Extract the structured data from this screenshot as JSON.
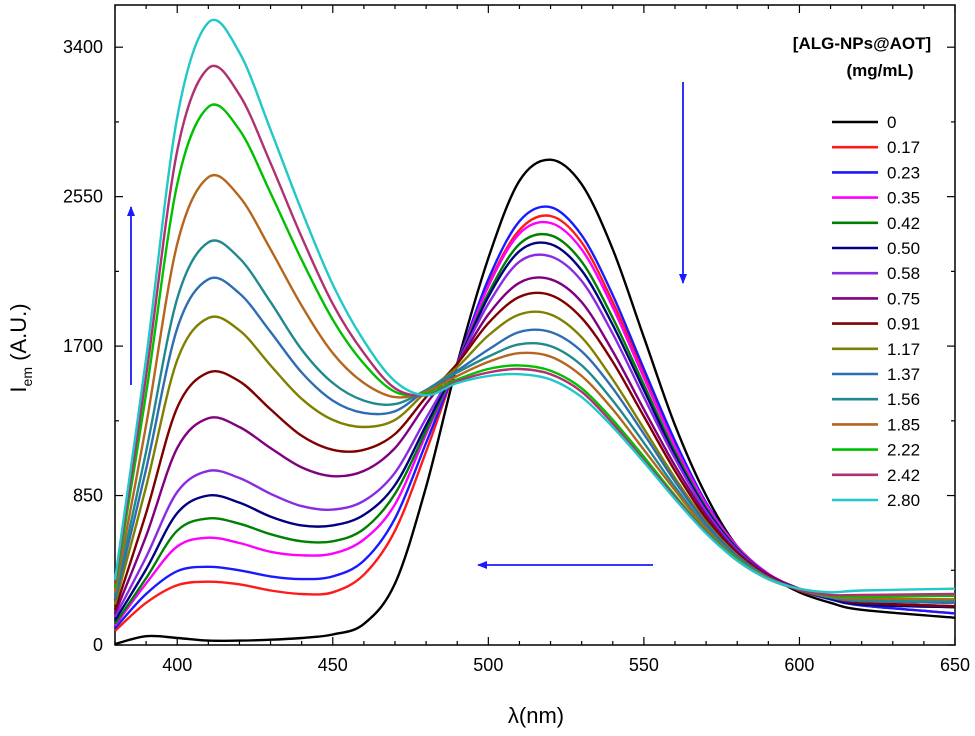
{
  "chart_data": {
    "type": "line",
    "xlabel": "λ(nm)",
    "ylabel": {
      "main": "I",
      "sub": "em",
      "unit": " (A.U.)"
    },
    "xlim": [
      380,
      650
    ],
    "ylim": [
      0,
      3640
    ],
    "xticks": [
      400,
      450,
      500,
      550,
      600,
      650
    ],
    "yticks": [
      0,
      850,
      1700,
      2550,
      3400
    ],
    "grid": false,
    "legend": {
      "title_line1": "[ALG-NPs@AOT]",
      "title_line2": "(mg/mL)",
      "placement": "right"
    },
    "annotations": [
      {
        "type": "arrow",
        "direction": "up",
        "color": "#1a1aff",
        "meaning": "increase of short-wavelength band"
      },
      {
        "type": "arrow",
        "direction": "down",
        "color": "#1a1aff",
        "meaning": "decrease of long-wavelength band"
      },
      {
        "type": "arrow",
        "direction": "left",
        "color": "#1a1aff",
        "meaning": "blue shift"
      }
    ],
    "series": [
      {
        "name": "0",
        "color": "#000000",
        "v": [
          5,
          50,
          40,
          25,
          25,
          30,
          40,
          60,
          120,
          350,
          900,
          1600,
          2200,
          2640,
          2760,
          2620,
          2250,
          1750,
          1250,
          850,
          560,
          400,
          300,
          240,
          200,
          155
        ]
      },
      {
        "name": "0.17",
        "color": "#ff1a1a",
        "v": [
          80,
          240,
          340,
          360,
          345,
          310,
          290,
          300,
          400,
          650,
          1100,
          1600,
          2050,
          2360,
          2440,
          2290,
          1950,
          1550,
          1150,
          800,
          550,
          400,
          310,
          260,
          225,
          180
        ]
      },
      {
        "name": "0.23",
        "color": "#1a1aff",
        "v": [
          95,
          290,
          420,
          445,
          425,
          390,
          375,
          390,
          480,
          720,
          1150,
          1600,
          2080,
          2410,
          2490,
          2330,
          1990,
          1570,
          1160,
          810,
          560,
          405,
          315,
          260,
          225,
          180
        ]
      },
      {
        "name": "0.35",
        "color": "#ff00ff",
        "v": [
          110,
          350,
          560,
          610,
          580,
          530,
          510,
          520,
          600,
          800,
          1200,
          1600,
          2040,
          2340,
          2400,
          2250,
          1920,
          1520,
          1130,
          800,
          560,
          405,
          320,
          270,
          235,
          220
        ]
      },
      {
        "name": "0.42",
        "color": "#008000",
        "v": [
          120,
          380,
          650,
          720,
          690,
          630,
          590,
          590,
          660,
          860,
          1220,
          1600,
          2000,
          2280,
          2330,
          2180,
          1860,
          1480,
          1100,
          780,
          550,
          400,
          315,
          265,
          230,
          215
        ]
      },
      {
        "name": "0.50",
        "color": "#000080",
        "v": [
          140,
          430,
          750,
          850,
          810,
          730,
          680,
          680,
          740,
          910,
          1250,
          1600,
          1980,
          2240,
          2280,
          2130,
          1820,
          1450,
          1080,
          770,
          545,
          400,
          315,
          265,
          230,
          215
        ]
      },
      {
        "name": "0.58",
        "color": "#8a2be2",
        "v": [
          160,
          500,
          870,
          990,
          950,
          860,
          790,
          770,
          820,
          980,
          1290,
          1600,
          1940,
          2180,
          2210,
          2070,
          1770,
          1410,
          1060,
          760,
          540,
          400,
          320,
          270,
          240,
          220
        ]
      },
      {
        "name": "0.75",
        "color": "#800080",
        "v": [
          180,
          620,
          1120,
          1290,
          1240,
          1120,
          1010,
          960,
          990,
          1120,
          1370,
          1600,
          1880,
          2060,
          2080,
          1950,
          1670,
          1340,
          1020,
          740,
          530,
          400,
          320,
          270,
          240,
          220
        ]
      },
      {
        "name": "0.91",
        "color": "#800000",
        "v": [
          200,
          750,
          1350,
          1550,
          1500,
          1340,
          1190,
          1110,
          1110,
          1200,
          1410,
          1600,
          1830,
          1980,
          1990,
          1860,
          1610,
          1300,
          990,
          720,
          520,
          390,
          315,
          270,
          240,
          220
        ]
      },
      {
        "name": "1.17",
        "color": "#808000",
        "v": [
          230,
          900,
          1620,
          1860,
          1790,
          1590,
          1400,
          1280,
          1240,
          1280,
          1440,
          1580,
          1760,
          1880,
          1880,
          1750,
          1510,
          1230,
          950,
          700,
          510,
          385,
          315,
          270,
          250,
          240
        ]
      },
      {
        "name": "1.37",
        "color": "#2e6db4",
        "v": [
          260,
          1000,
          1800,
          2080,
          2000,
          1780,
          1550,
          1390,
          1320,
          1330,
          1450,
          1560,
          1680,
          1780,
          1780,
          1670,
          1460,
          1200,
          930,
          690,
          505,
          385,
          315,
          270,
          250,
          240
        ]
      },
      {
        "name": "1.56",
        "color": "#20898e",
        "v": [
          280,
          1100,
          1970,
          2290,
          2200,
          1950,
          1680,
          1490,
          1390,
          1370,
          1450,
          1550,
          1640,
          1710,
          1700,
          1590,
          1390,
          1150,
          900,
          670,
          495,
          380,
          315,
          270,
          255,
          250
        ]
      },
      {
        "name": "1.85",
        "color": "#b5651d",
        "v": [
          300,
          1250,
          2280,
          2660,
          2550,
          2250,
          1930,
          1660,
          1490,
          1410,
          1440,
          1530,
          1610,
          1660,
          1640,
          1530,
          1340,
          1110,
          880,
          660,
          490,
          380,
          315,
          275,
          265,
          260
        ]
      },
      {
        "name": "2.22",
        "color": "#00c000",
        "v": [
          330,
          1430,
          2620,
          3060,
          2930,
          2570,
          2190,
          1850,
          1600,
          1440,
          1430,
          1510,
          1570,
          1590,
          1560,
          1460,
          1280,
          1070,
          850,
          645,
          485,
          375,
          315,
          280,
          275,
          280
        ]
      },
      {
        "name": "2.42",
        "color": "#b03070",
        "v": [
          350,
          1530,
          2810,
          3280,
          3130,
          2740,
          2320,
          1940,
          1660,
          1460,
          1420,
          1500,
          1550,
          1570,
          1540,
          1440,
          1260,
          1050,
          840,
          640,
          480,
          375,
          315,
          285,
          285,
          290
        ]
      },
      {
        "name": "2.80",
        "color": "#20c8c8",
        "v": [
          370,
          1630,
          3000,
          3540,
          3370,
          2930,
          2470,
          2050,
          1730,
          1500,
          1420,
          1490,
          1530,
          1540,
          1510,
          1410,
          1240,
          1040,
          830,
          635,
          480,
          375,
          320,
          300,
          310,
          320
        ]
      }
    ],
    "x": [
      380,
      390,
      400,
      410,
      420,
      430,
      440,
      450,
      460,
      470,
      480,
      490,
      500,
      510,
      520,
      530,
      540,
      550,
      560,
      570,
      580,
      590,
      600,
      610,
      620,
      650
    ]
  }
}
